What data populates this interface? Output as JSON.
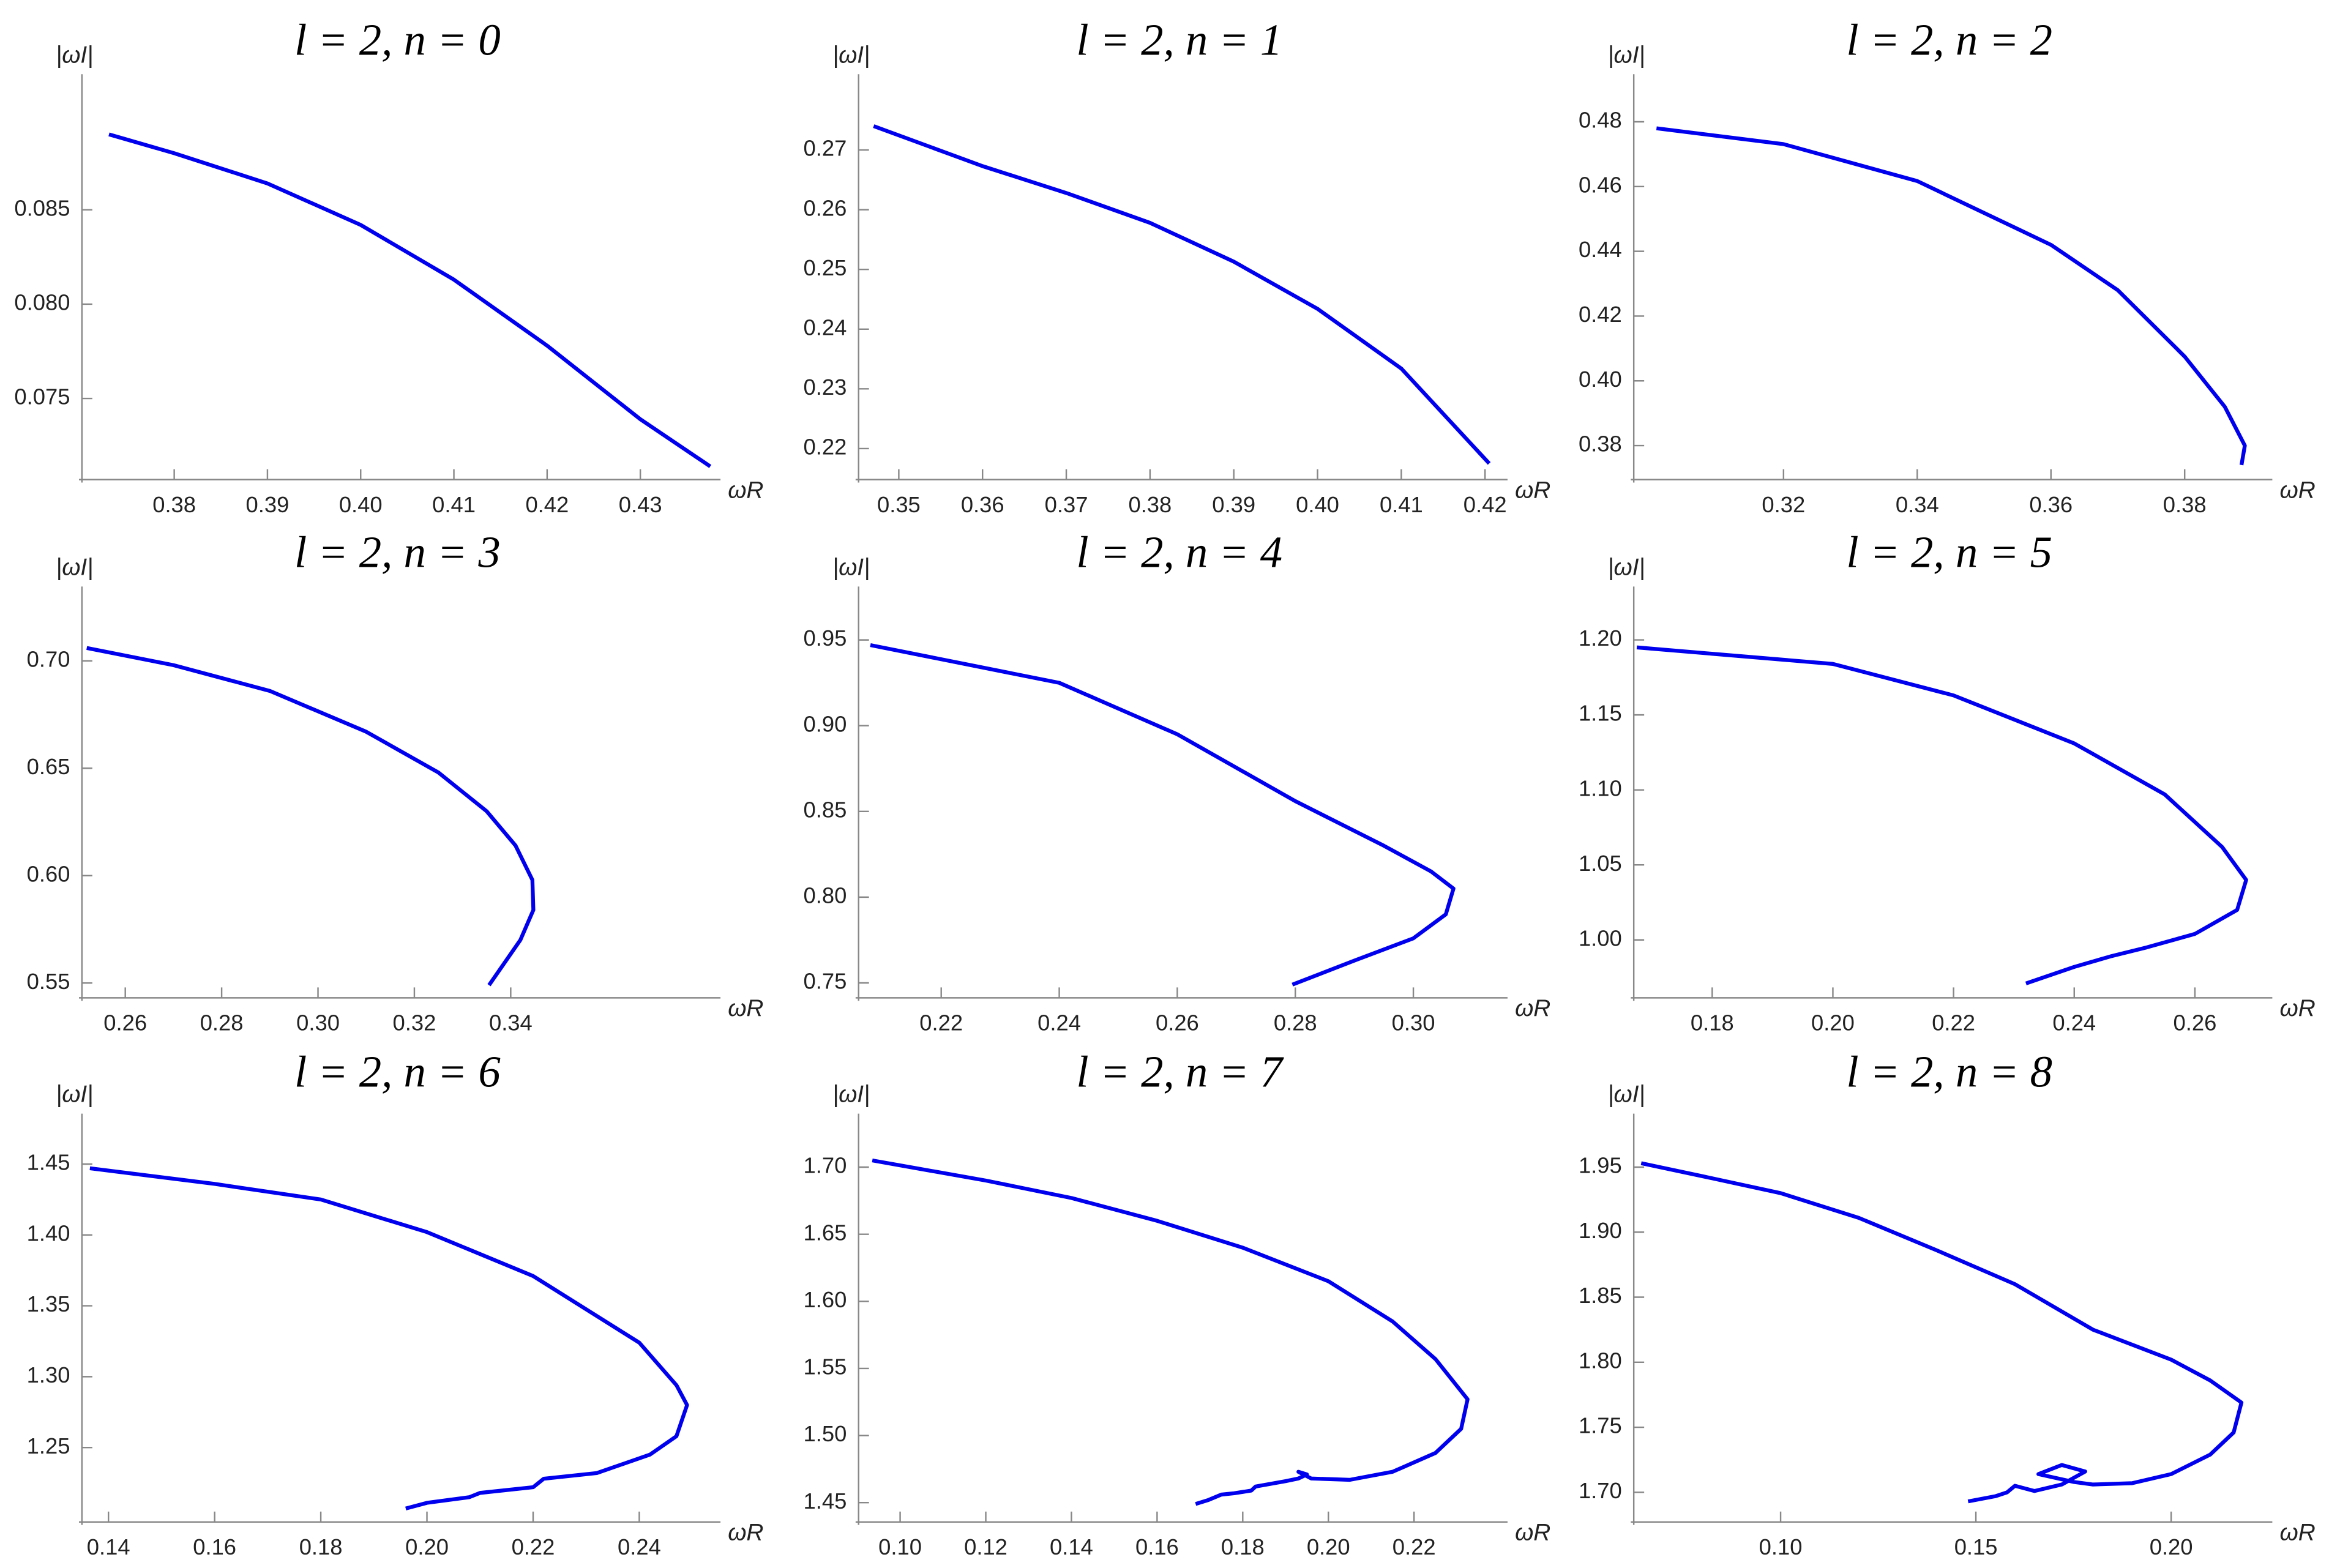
{
  "chart_data": [
    {
      "type": "line",
      "title": "l = 2, n = 0",
      "x_label": "ωR",
      "y_label": "|ωI|",
      "color": "#0000ee",
      "x": [
        0.373,
        0.38,
        0.39,
        0.4,
        0.41,
        0.42,
        0.43,
        0.4375
      ],
      "values": [
        0.089,
        0.088,
        0.0864,
        0.0842,
        0.0813,
        0.0778,
        0.0739,
        0.0714
      ],
      "xlim": [
        0.3701,
        0.4378
      ],
      "ylim": [
        0.0707,
        0.0914
      ],
      "xticks": [
        0.38,
        0.39,
        {
          "value": 0.4,
          "label": "0.40"
        },
        0.41,
        0.42,
        0.43
      ],
      "yticks": [
        0.075,
        {
          "value": 0.08,
          "label": "0.080"
        },
        0.085
      ]
    },
    {
      "type": "line",
      "title": "l = 2, n = 1",
      "x_label": "ωR",
      "y_label": "|ωI|",
      "color": "#0000ee",
      "x": [
        0.347,
        0.36,
        0.37,
        0.38,
        0.39,
        0.4,
        0.41,
        0.4205
      ],
      "values": [
        0.274,
        0.2673,
        0.2628,
        0.2578,
        0.2513,
        0.2434,
        0.2334,
        0.2175
      ],
      "xlim": [
        0.3452,
        0.4218
      ],
      "ylim": [
        0.2148,
        0.2802
      ],
      "xticks": [
        0.35,
        0.36,
        0.37,
        0.38,
        0.39,
        {
          "value": 0.4,
          "label": "0.40"
        },
        0.41,
        0.42
      ],
      "yticks": [
        0.22,
        0.23,
        0.24,
        0.25,
        0.26,
        0.27
      ]
    },
    {
      "type": "line",
      "title": "l = 2, n = 2",
      "x_label": "ωR",
      "y_label": "|ωI|",
      "color": "#0000ee",
      "x": [
        0.301,
        0.32,
        0.34,
        0.36,
        0.37,
        0.38,
        0.386,
        0.389,
        0.3885
      ],
      "values": [
        0.478,
        0.4731,
        0.4617,
        0.442,
        0.428,
        0.4075,
        0.392,
        0.38,
        0.374
      ],
      "xlim": [
        0.2976,
        0.392
      ],
      "ylim": [
        0.3695,
        0.4901
      ],
      "xticks": [
        0.32,
        0.34,
        0.36,
        0.38
      ],
      "yticks": [
        0.38,
        {
          "value": 0.4,
          "label": "0.40"
        },
        0.42,
        0.44,
        0.46,
        0.48
      ]
    },
    {
      "type": "line",
      "title": "l = 2, n = 3",
      "x_label": "ωR",
      "y_label": "|ωI|",
      "color": "#0000ee",
      "x": [
        0.252,
        0.27,
        0.29,
        0.31,
        0.325,
        0.335,
        0.341,
        0.3445,
        0.3447,
        0.342,
        0.3355
      ],
      "values": [
        0.706,
        0.698,
        0.686,
        0.667,
        0.648,
        0.63,
        0.614,
        0.598,
        0.584,
        0.57,
        0.549
      ],
      "xlim": [
        0.251,
        0.382
      ],
      "ylim": [
        0.5431,
        0.7277
      ],
      "xticks": [
        0.26,
        0.28,
        {
          "value": 0.3,
          "label": "0.30"
        },
        0.32,
        0.34
      ],
      "yticks": [
        0.55,
        {
          "value": 0.6,
          "label": "0.60"
        },
        0.65,
        {
          "value": 0.7,
          "label": "0.70"
        }
      ]
    },
    {
      "type": "line",
      "title": "l = 2, n = 4",
      "x_label": "ωR",
      "y_label": "|ωI|",
      "color": "#0000ee",
      "x": [
        0.208,
        0.24,
        0.26,
        0.28,
        0.295,
        0.303,
        0.3068,
        0.3055,
        0.3,
        0.29,
        0.2795
      ],
      "values": [
        0.947,
        0.925,
        0.895,
        0.856,
        0.83,
        0.815,
        0.805,
        0.79,
        0.776,
        0.763,
        0.749
      ],
      "xlim": [
        0.206,
        0.3147
      ],
      "ylim": [
        0.7413,
        0.9725
      ],
      "xticks": [
        0.22,
        0.24,
        0.26,
        0.28,
        {
          "value": 0.3,
          "label": "0.30"
        }
      ],
      "yticks": [
        0.75,
        {
          "value": 0.8,
          "label": "0.80"
        },
        0.85,
        {
          "value": 0.9,
          "label": "0.90"
        },
        0.95
      ]
    },
    {
      "type": "line",
      "title": "l = 2, n = 5",
      "x_label": "ωR",
      "y_label": "|ωI|",
      "color": "#0000ee",
      "x": [
        0.1675,
        0.2,
        0.22,
        0.24,
        0.255,
        0.2645,
        0.2685,
        0.267,
        0.26,
        0.252,
        0.246,
        0.24,
        0.232
      ],
      "values": [
        1.195,
        1.184,
        1.163,
        1.131,
        1.097,
        1.062,
        1.04,
        1.02,
        1.004,
        0.995,
        0.989,
        0.982,
        0.971
      ],
      "xlim": [
        0.167,
        0.2716
      ],
      "ylim": [
        0.9614,
        1.2257
      ],
      "xticks": [
        0.18,
        {
          "value": 0.2,
          "label": "0.20"
        },
        0.22,
        0.24,
        0.26
      ],
      "yticks": [
        {
          "value": 1,
          "label": "1.00"
        },
        1.05,
        {
          "value": 1.1,
          "label": "1.10"
        },
        1.15,
        {
          "value": 1.2,
          "label": "1.20"
        }
      ]
    },
    {
      "type": "line",
      "title": "l = 2, n = 6",
      "x_label": "ωR",
      "y_label": "|ωI|",
      "color": "#0000ee",
      "x": [
        0.1365,
        0.16,
        0.18,
        0.2,
        0.22,
        0.24,
        0.247,
        0.249,
        0.247,
        0.242,
        0.232,
        0.222,
        0.22,
        0.21,
        0.208,
        0.2,
        0.196
      ],
      "values": [
        1.447,
        1.436,
        1.425,
        1.402,
        1.371,
        1.324,
        1.294,
        1.28,
        1.258,
        1.245,
        1.232,
        1.228,
        1.222,
        1.218,
        1.215,
        1.211,
        1.207
      ],
      "xlim": [
        0.135,
        0.2539
      ],
      "ylim": [
        1.1975,
        1.4751
      ],
      "xticks": [
        0.14,
        0.16,
        0.18,
        {
          "value": 0.2,
          "label": "0.20"
        },
        0.22,
        0.24
      ],
      "yticks": [
        1.25,
        {
          "value": 1.3,
          "label": "1.30"
        },
        1.35,
        {
          "value": 1.4,
          "label": "1.40"
        },
        1.45
      ]
    },
    {
      "type": "line",
      "title": "l = 2, n = 7",
      "x_label": "ωR",
      "y_label": "|ωI|",
      "color": "#0000ee",
      "x": [
        0.0935,
        0.12,
        0.14,
        0.16,
        0.18,
        0.2,
        0.215,
        0.225,
        0.2325,
        0.231,
        0.225,
        0.215,
        0.205,
        0.196,
        0.193,
        0.195,
        0.193,
        0.19,
        0.183,
        0.182,
        0.178,
        0.175,
        0.172,
        0.169
      ],
      "values": [
        1.705,
        1.69,
        1.677,
        1.66,
        1.64,
        1.615,
        1.585,
        1.557,
        1.527,
        1.505,
        1.487,
        1.473,
        1.467,
        1.468,
        1.473,
        1.471,
        1.468,
        1.466,
        1.462,
        1.459,
        1.457,
        1.456,
        1.452,
        1.449
      ],
      "xlim": [
        0.0903,
        0.2401
      ],
      "ylim": [
        1.4356,
        1.7288
      ],
      "xticks": [
        {
          "value": 0.1,
          "label": "0.10"
        },
        0.12,
        0.14,
        0.16,
        0.18,
        {
          "value": 0.2,
          "label": "0.20"
        },
        0.22
      ],
      "yticks": [
        1.45,
        {
          "value": 1.5,
          "label": "1.50"
        },
        1.55,
        {
          "value": 1.6,
          "label": "1.60"
        },
        1.65,
        {
          "value": 1.7,
          "label": "1.70"
        }
      ]
    },
    {
      "type": "line",
      "title": "l = 2, n = 8",
      "x_label": "ωR",
      "y_label": "|ωI|",
      "color": "#0000ee",
      "x": [
        0.0643,
        0.08,
        0.1,
        0.12,
        0.14,
        0.16,
        0.18,
        0.2,
        0.21,
        0.218,
        0.216,
        0.21,
        0.2,
        0.19,
        0.18,
        0.175,
        0.166,
        0.172,
        0.178,
        0.172,
        0.165,
        0.16,
        0.158,
        0.155,
        0.148
      ],
      "values": [
        1.953,
        1.943,
        1.93,
        1.911,
        1.886,
        1.86,
        1.825,
        1.802,
        1.786,
        1.769,
        1.746,
        1.729,
        1.714,
        1.707,
        1.706,
        1.708,
        1.714,
        1.721,
        1.716,
        1.706,
        1.701,
        1.705,
        1.7,
        1.697,
        1.693
      ],
      "xlim": [
        0.0624,
        0.224
      ],
      "ylim": [
        1.6772,
        1.9797
      ],
      "xticks": [
        {
          "value": 0.1,
          "label": "0.10"
        },
        0.15,
        {
          "value": 0.2,
          "label": "0.20"
        }
      ],
      "yticks": [
        {
          "value": 1.7,
          "label": "1.70"
        },
        1.75,
        {
          "value": 1.8,
          "label": "1.80"
        },
        1.85,
        {
          "value": 1.9,
          "label": "1.90"
        },
        1.95
      ]
    }
  ]
}
